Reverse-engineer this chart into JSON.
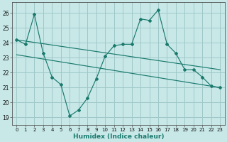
{
  "xlabel": "Humidex (Indice chaleur)",
  "background_color": "#c8e8e8",
  "grid_color": "#9fc8c8",
  "line_color": "#1a7a6e",
  "xlim": [
    -0.5,
    23.5
  ],
  "ylim": [
    18.5,
    26.7
  ],
  "yticks": [
    19,
    20,
    21,
    22,
    23,
    24,
    25,
    26
  ],
  "xticks": [
    0,
    1,
    2,
    3,
    4,
    5,
    6,
    7,
    8,
    9,
    10,
    11,
    12,
    13,
    14,
    15,
    16,
    17,
    18,
    19,
    20,
    21,
    22,
    23
  ],
  "main_x": [
    0,
    1,
    2,
    3,
    4,
    5,
    6,
    7,
    8,
    9,
    10,
    11,
    12,
    13,
    14,
    15,
    16,
    17,
    18,
    19,
    20,
    21,
    22,
    23
  ],
  "main_y": [
    24.2,
    23.9,
    25.9,
    23.3,
    21.7,
    21.2,
    19.1,
    19.5,
    20.3,
    21.6,
    23.1,
    23.8,
    23.9,
    23.9,
    25.6,
    25.5,
    26.2,
    23.9,
    23.3,
    22.2,
    22.2,
    21.7,
    21.1,
    21.0
  ],
  "trend1_x": [
    0,
    23
  ],
  "trend1_y": [
    24.2,
    22.2
  ],
  "trend2_x": [
    0,
    23
  ],
  "trend2_y": [
    23.2,
    21.0
  ]
}
